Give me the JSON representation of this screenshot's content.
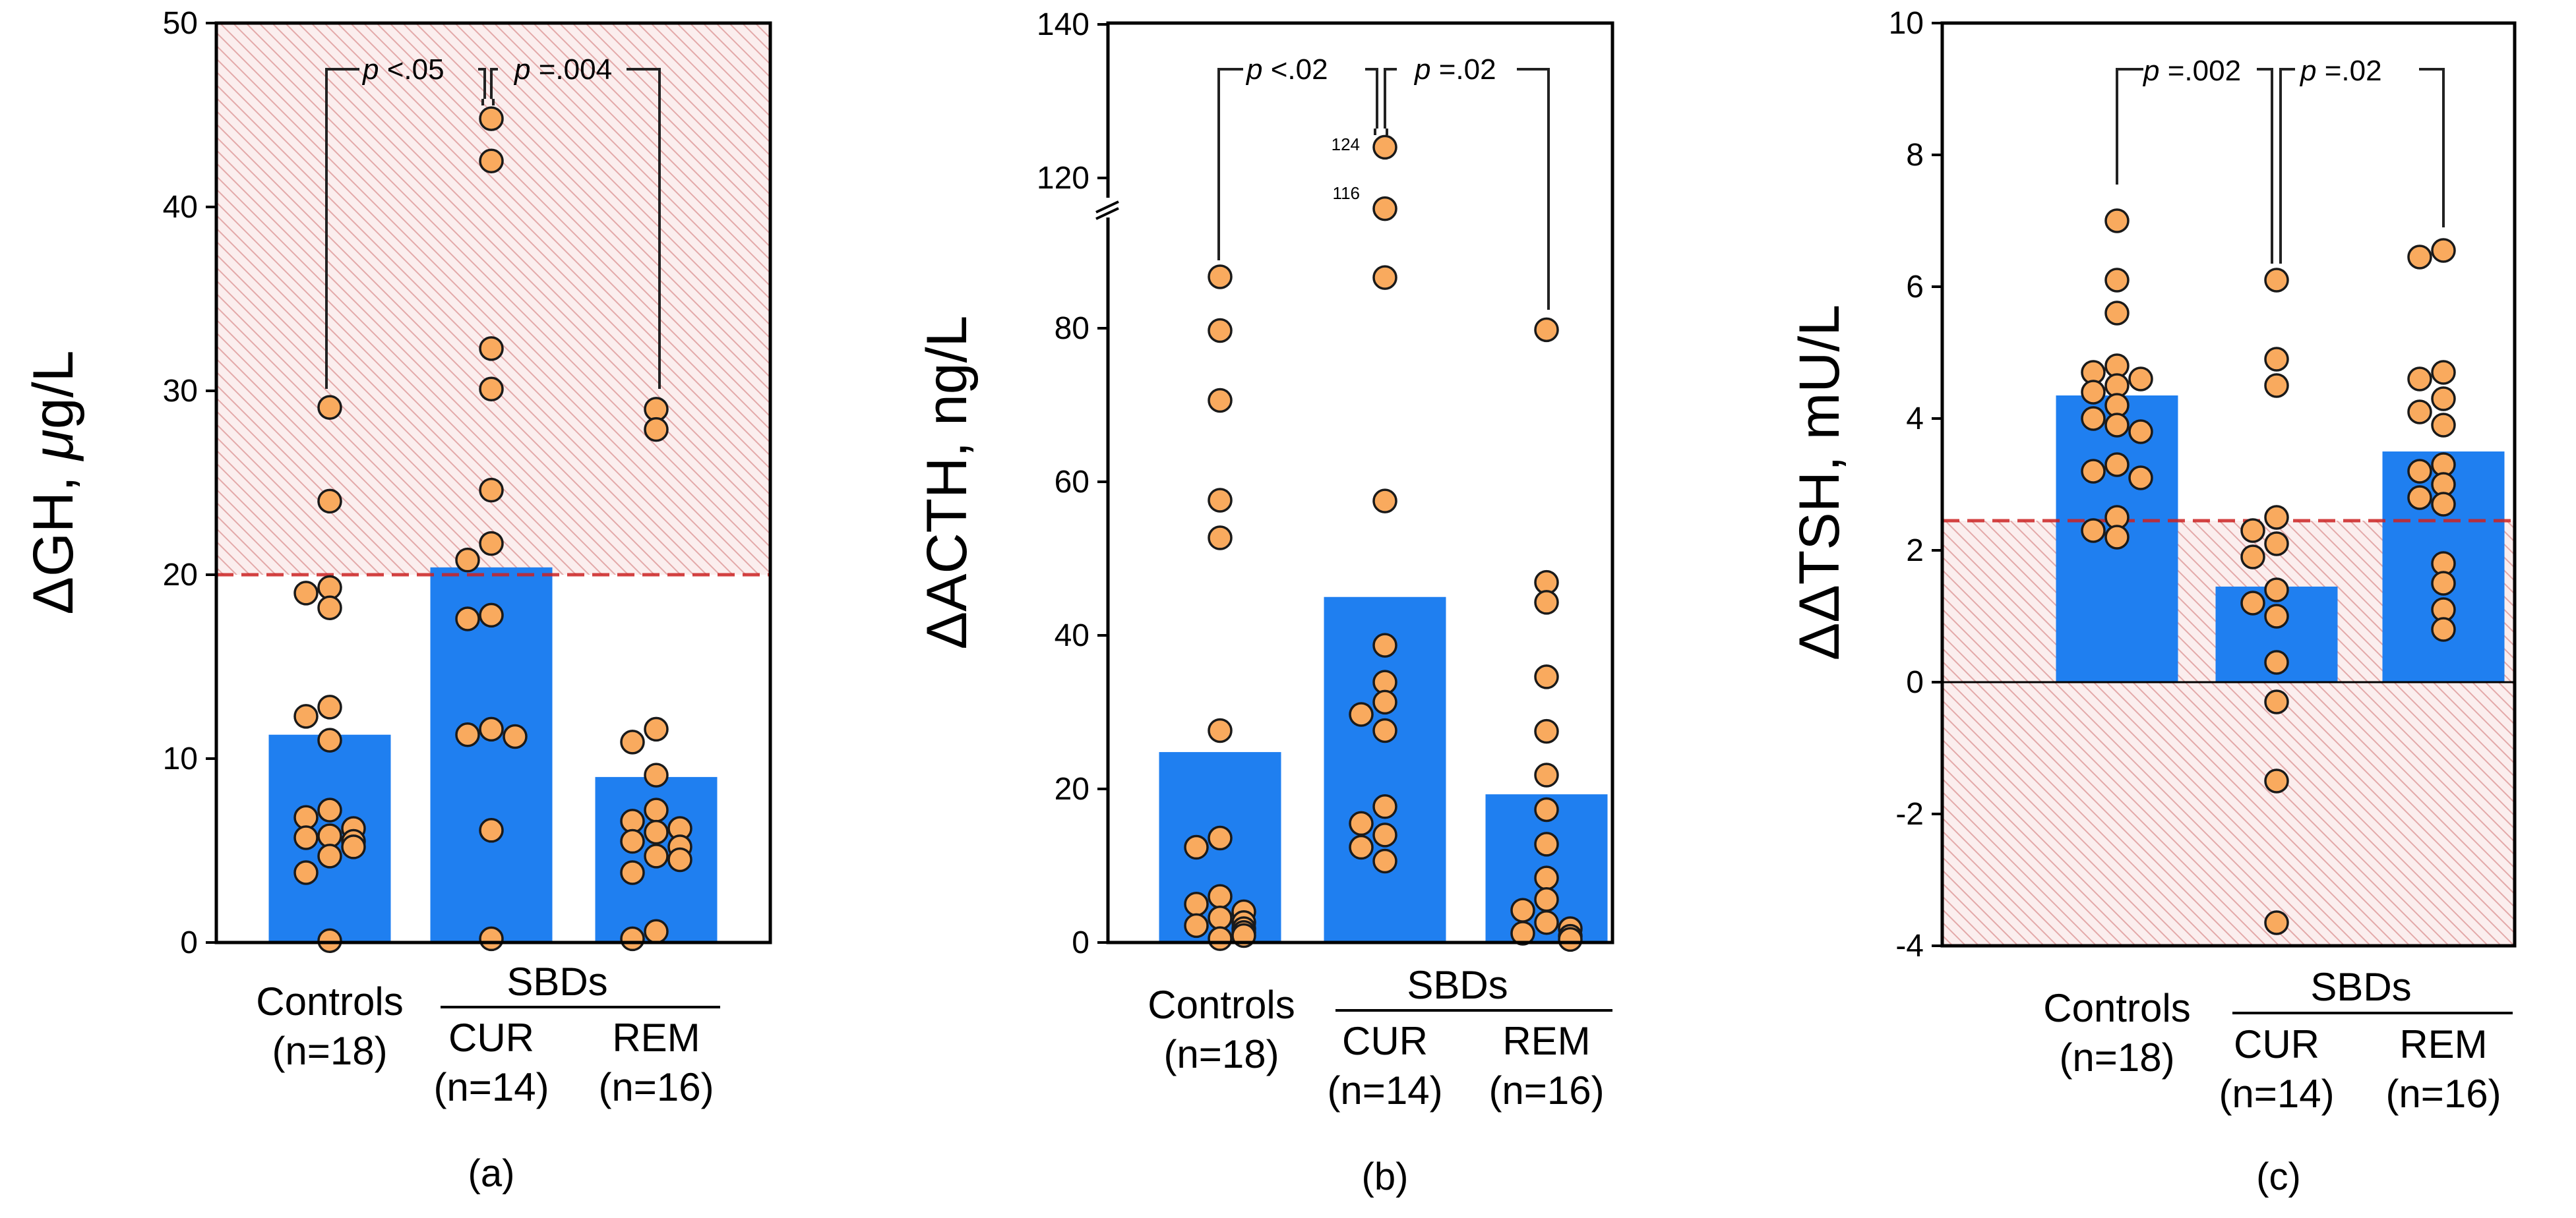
{
  "colors": {
    "bar": "#1f7ff0",
    "point_fill": "#f9aa5e",
    "point_stroke": "#1a1a1a",
    "threshold": "#cc2222",
    "hatch": "#e3a9a9"
  },
  "chart_data": [
    {
      "type": "bar",
      "panel_label": "(a)",
      "ylabel_prefix": "ΔGH, ",
      "ylabel_mu": "μ",
      "ylabel_suffix": "g/L",
      "ylim": [
        0,
        50
      ],
      "yticks": [
        0,
        10,
        20,
        30,
        40,
        50
      ],
      "threshold": 20,
      "hatch_range": [
        20,
        50
      ],
      "categories": [
        "Controls",
        "CUR",
        "REM"
      ],
      "group_header": "SBDs",
      "n_labels": [
        "(n=18)",
        "(n=14)",
        "(n=16)"
      ],
      "means": [
        11.3,
        20.4,
        9.0
      ],
      "points": [
        [
          29.1,
          24.0,
          19.3,
          19.0,
          18.2,
          12.8,
          12.3,
          11.0,
          7.2,
          6.8,
          6.2,
          5.8,
          5.7,
          5.5,
          5.2,
          4.7,
          3.8,
          0.1
        ],
        [
          44.8,
          42.5,
          32.3,
          30.1,
          24.6,
          21.7,
          20.8,
          17.8,
          17.6,
          11.6,
          11.3,
          11.2,
          6.1,
          0.2
        ],
        [
          29.0,
          27.9,
          11.6,
          10.9,
          9.1,
          7.2,
          6.6,
          6.2,
          6.0,
          5.5,
          5.2,
          4.7,
          4.5,
          3.8,
          0.6,
          0.2
        ]
      ],
      "p_values": [
        {
          "prefix": "p",
          "text": " <.05"
        },
        {
          "prefix": "p",
          "text": " =.004"
        }
      ]
    },
    {
      "type": "bar",
      "panel_label": "(b)",
      "ylabel": "ΔACTH, ng/L",
      "ylim": [
        0,
        140
      ],
      "yticks": [
        0,
        20,
        40,
        60,
        80,
        120,
        140
      ],
      "axis_break": true,
      "categories": [
        "Controls",
        "CUR",
        "REM"
      ],
      "group_header": "SBDs",
      "n_labels": [
        "(n=18)",
        "(n=14)",
        "(n=16)"
      ],
      "means": [
        24.8,
        45.0,
        19.3
      ],
      "points": [
        [
          86.7,
          79.7,
          70.6,
          57.6,
          52.7,
          27.6,
          13.6,
          12.4,
          6.0,
          5.0,
          4.0,
          3.2,
          2.6,
          2.2,
          1.8,
          1.3,
          0.9,
          0.5
        ],
        [
          124,
          116,
          86.6,
          57.5,
          38.7,
          33.9,
          31.3,
          29.7,
          27.6,
          17.7,
          15.5,
          14.0,
          12.4,
          10.6
        ],
        [
          79.8,
          46.9,
          44.3,
          34.6,
          27.5,
          21.8,
          17.3,
          12.8,
          8.4,
          5.6,
          4.2,
          2.6,
          1.8,
          1.2,
          0.8,
          0.4
        ]
      ],
      "annotations": [
        "124",
        "116"
      ],
      "p_values": [
        {
          "prefix": "p",
          "text": " <.02"
        },
        {
          "prefix": "p",
          "text": " =.02"
        }
      ]
    },
    {
      "type": "bar",
      "panel_label": "(c)",
      "ylabel": "ΔΔTSH, mU/L",
      "ylim": [
        -4,
        10
      ],
      "yticks": [
        -4,
        -2,
        0,
        2,
        4,
        6,
        8,
        10
      ],
      "threshold": 2.45,
      "hatch_range": [
        -4,
        2.45
      ],
      "categories": [
        "Controls",
        "CUR",
        "REM"
      ],
      "group_header": "SBDs",
      "n_labels": [
        "(n=18)",
        "(n=14)",
        "(n=16)"
      ],
      "means": [
        4.35,
        1.45,
        3.5
      ],
      "points": [
        [
          7.0,
          6.1,
          5.6,
          4.8,
          4.7,
          4.6,
          4.5,
          4.4,
          4.2,
          4.0,
          3.9,
          3.8,
          3.3,
          3.2,
          3.1,
          2.5,
          2.3,
          2.2
        ],
        [
          6.1,
          4.9,
          4.5,
          2.5,
          2.1,
          1.9,
          1.4,
          1.2,
          1.0,
          0.3,
          -0.3,
          -1.5,
          -3.65,
          2.3
        ],
        [
          6.55,
          6.45,
          4.7,
          4.6,
          4.3,
          4.1,
          3.9,
          3.3,
          3.2,
          3.0,
          2.8,
          2.7,
          1.8,
          1.5,
          1.1,
          0.8
        ]
      ],
      "p_values": [
        {
          "prefix": "p",
          "text": " =.002"
        },
        {
          "prefix": "p",
          "text": " =.02"
        }
      ]
    }
  ]
}
